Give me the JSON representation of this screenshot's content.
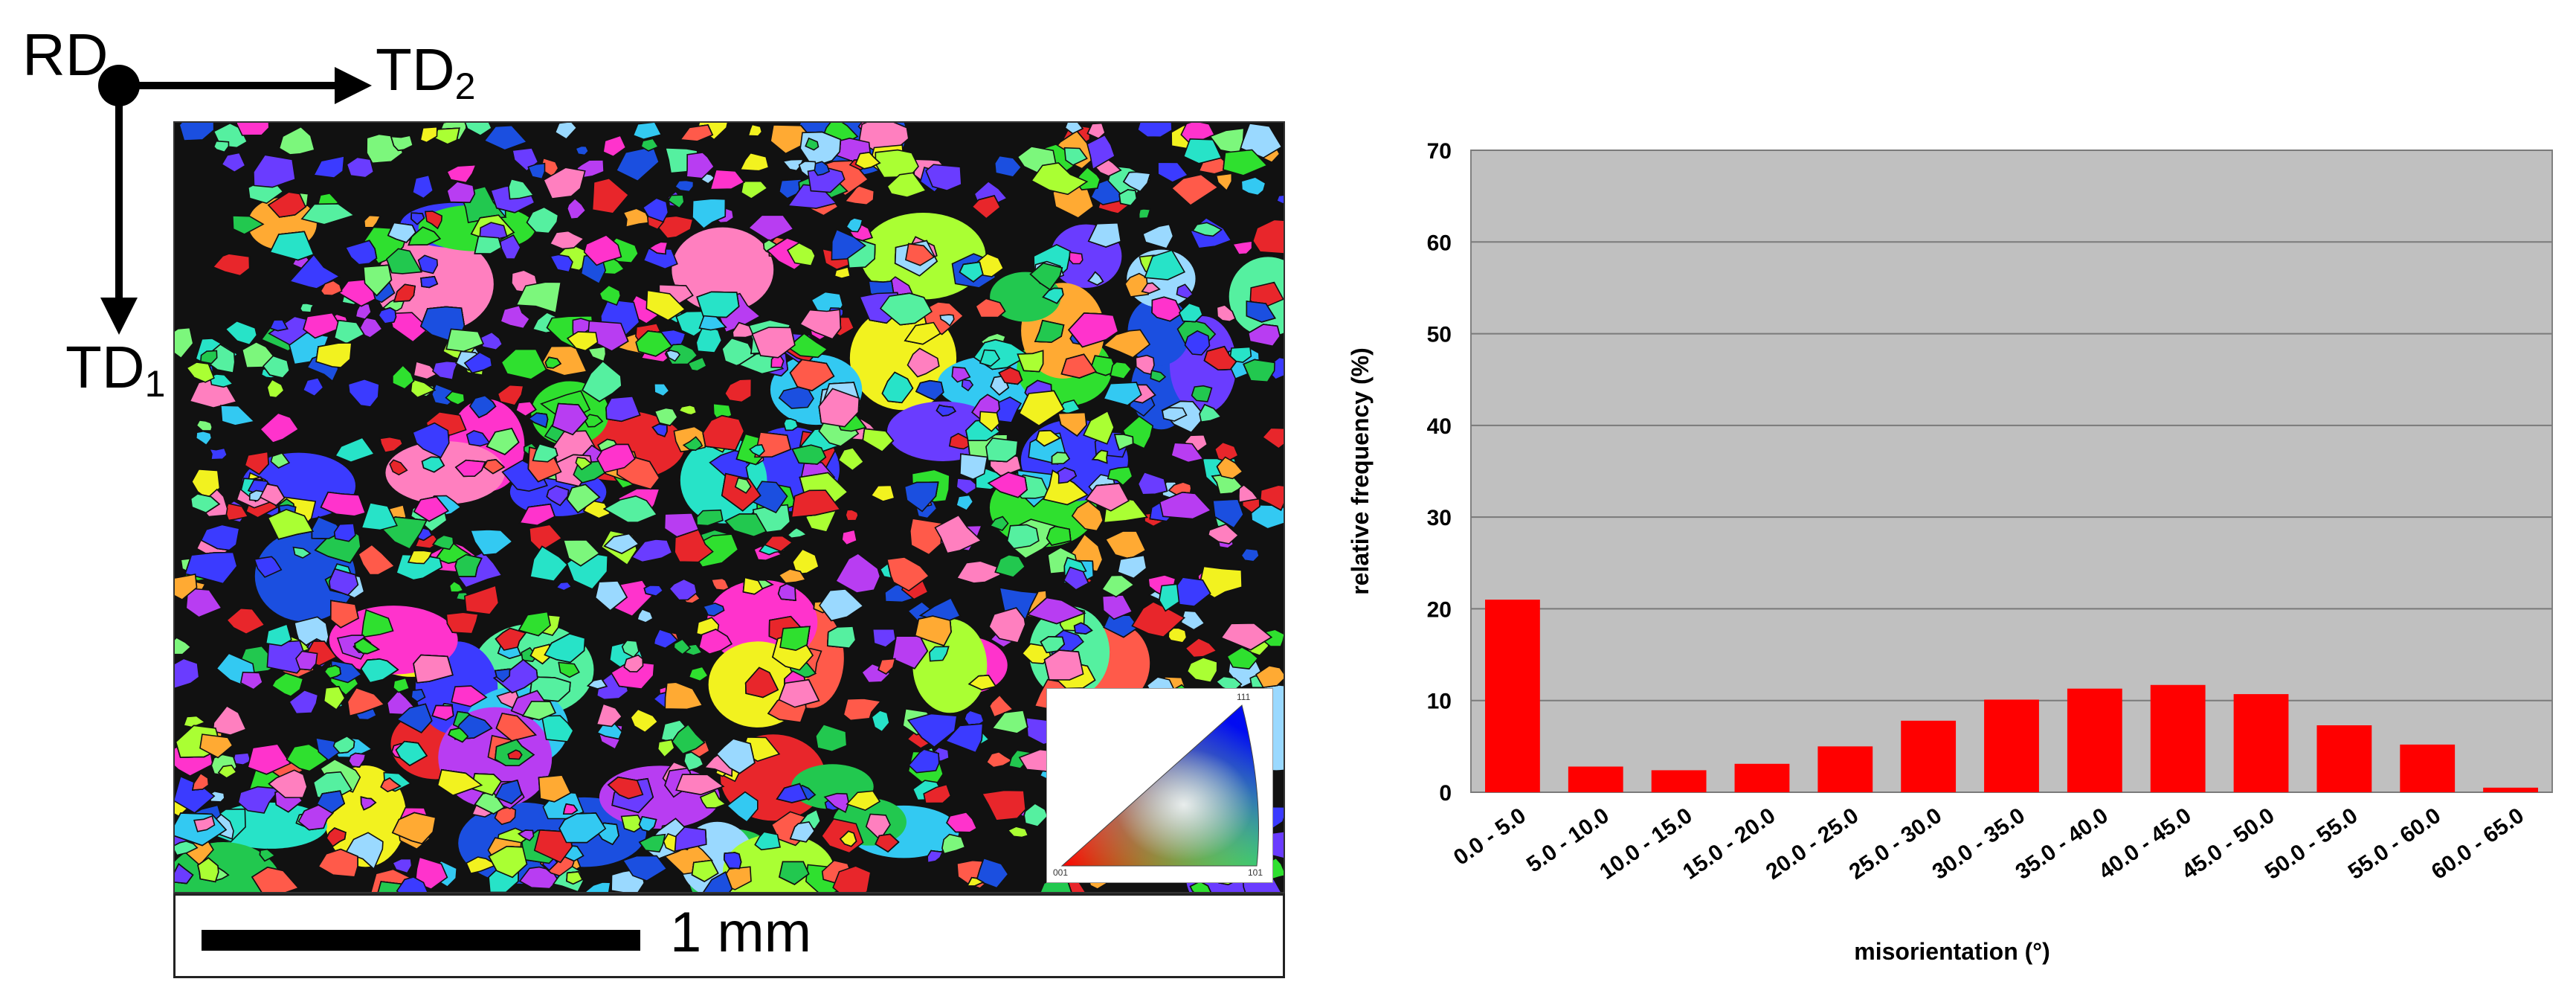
{
  "figure": {
    "axes_labels": {
      "rd": "RD",
      "td1": "TD",
      "td1_sub": "1",
      "td2": "TD",
      "td2_sub": "2"
    },
    "scale_bar": {
      "label": "1 mm"
    },
    "ipf_key": {
      "c111": "111",
      "c001": "001",
      "c101": "101"
    },
    "ebsd_map": {
      "grain_colors": [
        "#e8262b",
        "#ff5a4a",
        "#2fe02f",
        "#7cf77c",
        "#22c84f",
        "#3b3bff",
        "#6a3cff",
        "#1b4fe0",
        "#ff33cc",
        "#b83df2",
        "#33c9f2",
        "#27e3c8",
        "#f2f21f",
        "#ffaa33",
        "#aaff33",
        "#ff7fbf",
        "#9ad9ff",
        "#55f0a0"
      ]
    }
  },
  "chart_data": {
    "type": "bar",
    "categories": [
      "0.0 - 5.0",
      "5.0 - 10.0",
      "10.0 - 15.0",
      "15.0 - 20.0",
      "20.0 - 25.0",
      "25.0 - 30.0",
      "30.0 - 35.0",
      "35.0 - 40.0",
      "40.0 - 45.0",
      "45.0 - 50.0",
      "50.0 - 55.0",
      "55.0 - 60.0",
      "60.0 - 65.0"
    ],
    "values": [
      21.0,
      2.8,
      2.4,
      3.1,
      5.0,
      7.8,
      10.1,
      11.3,
      11.7,
      10.7,
      7.3,
      5.2,
      0.5
    ],
    "title": "",
    "xlabel": "misorientation (°)",
    "ylabel": "relative frequency (%)",
    "ylim": [
      0,
      70
    ],
    "yticks": [
      0,
      10,
      20,
      30,
      40,
      50,
      60,
      70
    ],
    "grid": true,
    "bar_color": "#ff0000",
    "plot_background": "#c0c0c0"
  }
}
